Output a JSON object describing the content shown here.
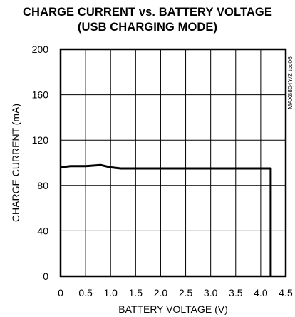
{
  "chart_data": {
    "type": "line",
    "title": "CHARGE CURRENT vs. BATTERY VOLTAGE",
    "subtitle": "(USB CHARGING MODE)",
    "xlabel": "BATTERY VOLTAGE (V)",
    "ylabel": "CHARGE CURRENT (mA)",
    "xlim": [
      0,
      4.5
    ],
    "ylim": [
      0,
      200
    ],
    "x_ticks": [
      "0",
      "0.5",
      "1.0",
      "1.5",
      "2.0",
      "2.5",
      "3.0",
      "3.5",
      "4.0",
      "4.5"
    ],
    "y_ticks": [
      "0",
      "40",
      "80",
      "120",
      "160",
      "200"
    ],
    "grid": true,
    "annotation": "MAX8804Y/Z toc06",
    "series": [
      {
        "x": [
          0,
          0.2,
          0.5,
          0.8,
          1.0,
          1.2,
          1.5,
          2.0,
          2.5,
          3.0,
          3.5,
          4.0,
          4.2,
          4.2
        ],
        "y": [
          96,
          97,
          97,
          98,
          96,
          95,
          95,
          95,
          95,
          95,
          95,
          95,
          95,
          0
        ]
      }
    ]
  }
}
